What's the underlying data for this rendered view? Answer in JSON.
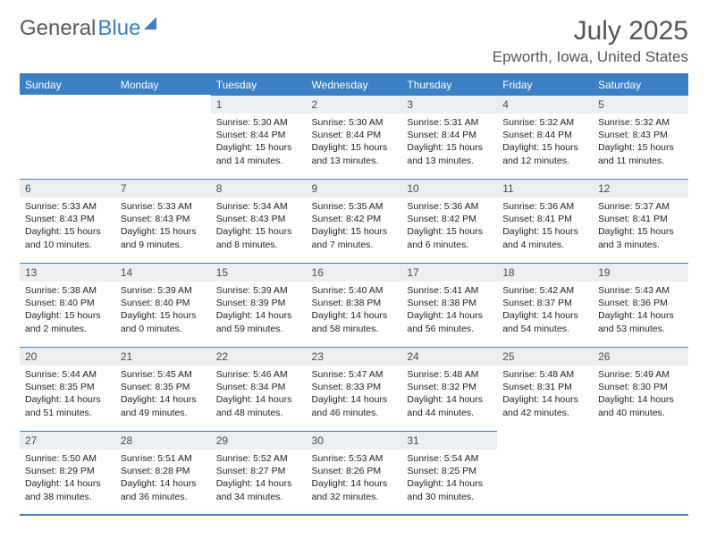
{
  "brand": {
    "part1": "General",
    "part2": "Blue"
  },
  "title": "July 2025",
  "location": "Epworth, Iowa, United States",
  "colors": {
    "accent": "#3b7fc4",
    "header_text": "#ffffff",
    "daynum_bg": "#eceff1",
    "text": "#333333"
  },
  "weekdays": [
    "Sunday",
    "Monday",
    "Tuesday",
    "Wednesday",
    "Thursday",
    "Friday",
    "Saturday"
  ],
  "weeks": [
    [
      null,
      null,
      {
        "n": "1",
        "sr": "5:30 AM",
        "ss": "8:44 PM",
        "dl": "15 hours and 14 minutes."
      },
      {
        "n": "2",
        "sr": "5:30 AM",
        "ss": "8:44 PM",
        "dl": "15 hours and 13 minutes."
      },
      {
        "n": "3",
        "sr": "5:31 AM",
        "ss": "8:44 PM",
        "dl": "15 hours and 13 minutes."
      },
      {
        "n": "4",
        "sr": "5:32 AM",
        "ss": "8:44 PM",
        "dl": "15 hours and 12 minutes."
      },
      {
        "n": "5",
        "sr": "5:32 AM",
        "ss": "8:43 PM",
        "dl": "15 hours and 11 minutes."
      }
    ],
    [
      {
        "n": "6",
        "sr": "5:33 AM",
        "ss": "8:43 PM",
        "dl": "15 hours and 10 minutes."
      },
      {
        "n": "7",
        "sr": "5:33 AM",
        "ss": "8:43 PM",
        "dl": "15 hours and 9 minutes."
      },
      {
        "n": "8",
        "sr": "5:34 AM",
        "ss": "8:43 PM",
        "dl": "15 hours and 8 minutes."
      },
      {
        "n": "9",
        "sr": "5:35 AM",
        "ss": "8:42 PM",
        "dl": "15 hours and 7 minutes."
      },
      {
        "n": "10",
        "sr": "5:36 AM",
        "ss": "8:42 PM",
        "dl": "15 hours and 6 minutes."
      },
      {
        "n": "11",
        "sr": "5:36 AM",
        "ss": "8:41 PM",
        "dl": "15 hours and 4 minutes."
      },
      {
        "n": "12",
        "sr": "5:37 AM",
        "ss": "8:41 PM",
        "dl": "15 hours and 3 minutes."
      }
    ],
    [
      {
        "n": "13",
        "sr": "5:38 AM",
        "ss": "8:40 PM",
        "dl": "15 hours and 2 minutes."
      },
      {
        "n": "14",
        "sr": "5:39 AM",
        "ss": "8:40 PM",
        "dl": "15 hours and 0 minutes."
      },
      {
        "n": "15",
        "sr": "5:39 AM",
        "ss": "8:39 PM",
        "dl": "14 hours and 59 minutes."
      },
      {
        "n": "16",
        "sr": "5:40 AM",
        "ss": "8:38 PM",
        "dl": "14 hours and 58 minutes."
      },
      {
        "n": "17",
        "sr": "5:41 AM",
        "ss": "8:38 PM",
        "dl": "14 hours and 56 minutes."
      },
      {
        "n": "18",
        "sr": "5:42 AM",
        "ss": "8:37 PM",
        "dl": "14 hours and 54 minutes."
      },
      {
        "n": "19",
        "sr": "5:43 AM",
        "ss": "8:36 PM",
        "dl": "14 hours and 53 minutes."
      }
    ],
    [
      {
        "n": "20",
        "sr": "5:44 AM",
        "ss": "8:35 PM",
        "dl": "14 hours and 51 minutes."
      },
      {
        "n": "21",
        "sr": "5:45 AM",
        "ss": "8:35 PM",
        "dl": "14 hours and 49 minutes."
      },
      {
        "n": "22",
        "sr": "5:46 AM",
        "ss": "8:34 PM",
        "dl": "14 hours and 48 minutes."
      },
      {
        "n": "23",
        "sr": "5:47 AM",
        "ss": "8:33 PM",
        "dl": "14 hours and 46 minutes."
      },
      {
        "n": "24",
        "sr": "5:48 AM",
        "ss": "8:32 PM",
        "dl": "14 hours and 44 minutes."
      },
      {
        "n": "25",
        "sr": "5:48 AM",
        "ss": "8:31 PM",
        "dl": "14 hours and 42 minutes."
      },
      {
        "n": "26",
        "sr": "5:49 AM",
        "ss": "8:30 PM",
        "dl": "14 hours and 40 minutes."
      }
    ],
    [
      {
        "n": "27",
        "sr": "5:50 AM",
        "ss": "8:29 PM",
        "dl": "14 hours and 38 minutes."
      },
      {
        "n": "28",
        "sr": "5:51 AM",
        "ss": "8:28 PM",
        "dl": "14 hours and 36 minutes."
      },
      {
        "n": "29",
        "sr": "5:52 AM",
        "ss": "8:27 PM",
        "dl": "14 hours and 34 minutes."
      },
      {
        "n": "30",
        "sr": "5:53 AM",
        "ss": "8:26 PM",
        "dl": "14 hours and 32 minutes."
      },
      {
        "n": "31",
        "sr": "5:54 AM",
        "ss": "8:25 PM",
        "dl": "14 hours and 30 minutes."
      },
      null,
      null
    ]
  ],
  "labels": {
    "sunrise": "Sunrise:",
    "sunset": "Sunset:",
    "daylight": "Daylight:"
  }
}
